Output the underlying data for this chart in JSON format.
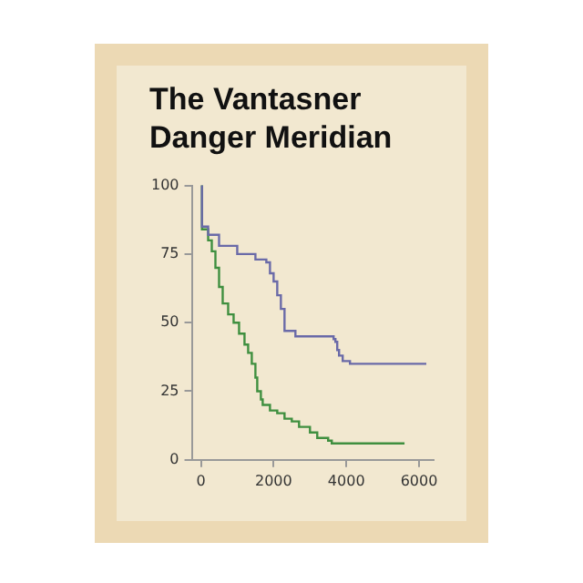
{
  "chart_data": {
    "type": "step",
    "title": "The Vantasner Danger Meridian",
    "series": [
      {
        "color": "#6a6aa8",
        "x": [
          0,
          30,
          200,
          500,
          1000,
          1500,
          1800,
          1900,
          2000,
          2100,
          2200,
          2300,
          2600,
          3600,
          3650,
          3700,
          3750,
          3800,
          3900,
          4100,
          6200
        ],
        "values": [
          100,
          85,
          82,
          78,
          75,
          73,
          72,
          68,
          65,
          60,
          55,
          47,
          45,
          45,
          44,
          43,
          40,
          38,
          36,
          35,
          35
        ]
      },
      {
        "color": "#3f8f3f",
        "x": [
          0,
          30,
          200,
          300,
          400,
          500,
          600,
          750,
          900,
          1050,
          1200,
          1300,
          1400,
          1500,
          1550,
          1650,
          1700,
          1900,
          2100,
          2300,
          2500,
          2700,
          3000,
          3200,
          3500,
          3600,
          5600
        ],
        "values": [
          100,
          84,
          80,
          76,
          70,
          63,
          57,
          53,
          50,
          46,
          42,
          39,
          35,
          30,
          25,
          22,
          20,
          18,
          17,
          15,
          14,
          12,
          10,
          8,
          7,
          6,
          6
        ]
      }
    ],
    "xlim": [
      -250,
      6400
    ],
    "xticks": [
      0,
      2000,
      4000,
      6000
    ],
    "ylim": [
      0,
      100
    ],
    "yticks": [
      0,
      25,
      50,
      75,
      100
    ],
    "grid": false,
    "legend": false
  }
}
